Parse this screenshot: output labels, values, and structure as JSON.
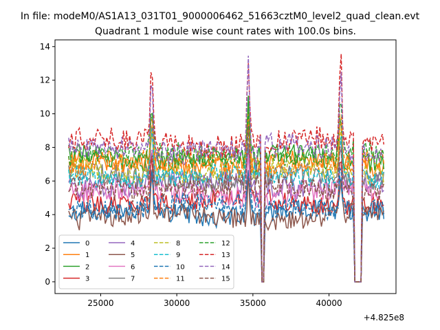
{
  "suptitle": "In file: modeM0/AS1A13_031T01_9000006462_51663cztM0_level2_quad_clean.evt",
  "chart_data": {
    "type": "line",
    "title": "Quadrant 1 module wise count rates with 100.0s bins.",
    "xlabel": "",
    "ylabel": "",
    "x_offset_label": "+4.825e8",
    "xlim": [
      22000,
      44400
    ],
    "ylim": [
      -0.7,
      14.4
    ],
    "xticks": [
      25000,
      30000,
      35000,
      40000
    ],
    "yticks": [
      0,
      2,
      4,
      6,
      8,
      10,
      12,
      14
    ],
    "x_range": [
      22900,
      43600
    ],
    "bin_size_s": 100,
    "legend_position": "lower-left",
    "series": [
      {
        "name": "0",
        "color": "#1f77b4",
        "dash": "solid",
        "base": 4.1,
        "amp": 0.35,
        "peak": 6.5
      },
      {
        "name": "1",
        "color": "#ff7f0e",
        "dash": "solid",
        "base": 7.0,
        "amp": 0.35,
        "peak": 10.0
      },
      {
        "name": "2",
        "color": "#2ca02c",
        "dash": "solid",
        "base": 7.4,
        "amp": 0.35,
        "peak": 10.5
      },
      {
        "name": "3",
        "color": "#d62728",
        "dash": "solid",
        "base": 4.8,
        "amp": 0.35,
        "peak": 7.5
      },
      {
        "name": "4",
        "color": "#9467bd",
        "dash": "solid",
        "base": 5.8,
        "amp": 0.35,
        "peak": 8.5
      },
      {
        "name": "5",
        "color": "#8c564b",
        "dash": "solid",
        "base": 3.9,
        "amp": 0.35,
        "peak": 6.2
      },
      {
        "name": "6",
        "color": "#e377c2",
        "dash": "solid",
        "base": 5.3,
        "amp": 0.35,
        "peak": 8.0
      },
      {
        "name": "7",
        "color": "#7f7f7f",
        "dash": "solid",
        "base": 6.2,
        "amp": 0.35,
        "peak": 9.0
      },
      {
        "name": "8",
        "color": "#bcbd22",
        "dash": "dashed",
        "base": 6.6,
        "amp": 0.35,
        "peak": 9.5
      },
      {
        "name": "9",
        "color": "#17becf",
        "dash": "dashed",
        "base": 6.3,
        "amp": 0.35,
        "peak": 9.2
      },
      {
        "name": "10",
        "color": "#1f77b4",
        "dash": "dashed",
        "base": 4.5,
        "amp": 0.35,
        "peak": 7.0
      },
      {
        "name": "11",
        "color": "#ff7f0e",
        "dash": "dashed",
        "base": 7.1,
        "amp": 0.35,
        "peak": 10.2
      },
      {
        "name": "12",
        "color": "#2ca02c",
        "dash": "dashed",
        "base": 7.6,
        "amp": 0.35,
        "peak": 10.8
      },
      {
        "name": "13",
        "color": "#d62728",
        "dash": "dashed",
        "base": 8.3,
        "amp": 0.4,
        "peak": 13.3
      },
      {
        "name": "14",
        "color": "#9467bd",
        "dash": "dashed",
        "base": 7.9,
        "amp": 0.4,
        "peak": 12.5
      },
      {
        "name": "15",
        "color": "#8c564b",
        "dash": "dashed",
        "base": 5.6,
        "amp": 0.35,
        "peak": 8.3
      }
    ],
    "features": [
      {
        "kind": "peak",
        "x": 28350,
        "height_frac": 1.0
      },
      {
        "kind": "peak",
        "x": 34700,
        "height_frac": 1.0
      },
      {
        "kind": "dip",
        "x": 35200,
        "value": 5.0
      },
      {
        "kind": "gap",
        "x_from": 35550,
        "x_to": 35700,
        "value": 0
      },
      {
        "kind": "peak",
        "x": 40750,
        "height_frac": 1.0
      },
      {
        "kind": "gap",
        "x_from": 41700,
        "x_to": 42100,
        "value": 0
      }
    ]
  }
}
